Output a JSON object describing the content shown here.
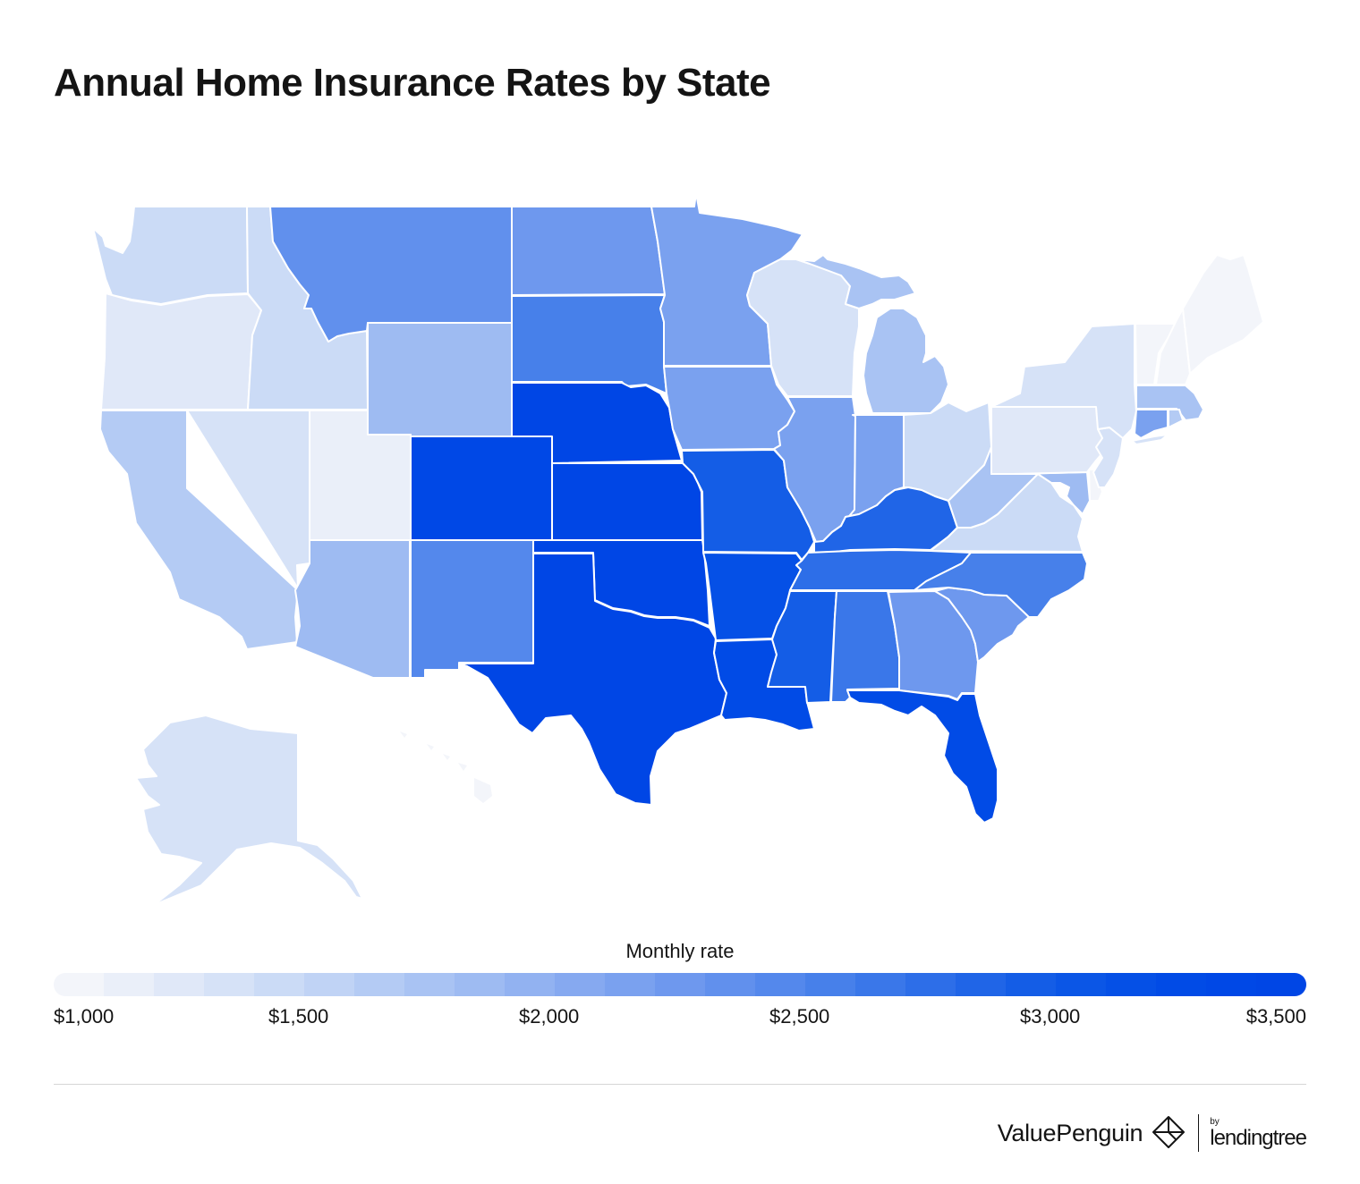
{
  "title": "Annual Home Insurance Rates by State",
  "legend": {
    "title": "Monthly rate",
    "ticks": [
      "$1,000",
      "$1,500",
      "$2,000",
      "$2,500",
      "$3,000",
      "$3,500"
    ],
    "min": 1000,
    "max": 3500,
    "colors": [
      "#f3f5fa",
      "#eaeff9",
      "#e0e8f8",
      "#d6e2f7",
      "#cbdbf6",
      "#c0d3f5",
      "#b4cbf4",
      "#a9c3f3",
      "#9ebbf2",
      "#92b2f1",
      "#86a9f0",
      "#7aa1ef",
      "#6e98ee",
      "#6190ed",
      "#5488ec",
      "#4780ea",
      "#3a77e9",
      "#2d6ee8",
      "#2065e7",
      "#145de6",
      "#0b56e6",
      "#0550e6",
      "#014be6",
      "#0048e6",
      "#0046e5"
    ]
  },
  "chart_data": {
    "type": "choropleth",
    "title": "Annual Home Insurance Rates by State",
    "legend_label": "Monthly rate",
    "scale": {
      "min": 1000,
      "max": 3500,
      "ticks": [
        1000,
        1500,
        2000,
        2500,
        3000,
        3500
      ]
    },
    "colors": {
      "low": "#f3f5fa",
      "high": "#0048e6"
    },
    "states": [
      {
        "state": "WA",
        "value": 1400
      },
      {
        "state": "OR",
        "value": 1250
      },
      {
        "state": "CA",
        "value": 1600
      },
      {
        "state": "NV",
        "value": 1350
      },
      {
        "state": "ID",
        "value": 1400
      },
      {
        "state": "MT",
        "value": 2350
      },
      {
        "state": "WY",
        "value": 1850
      },
      {
        "state": "UT",
        "value": 1150
      },
      {
        "state": "AZ",
        "value": 1850
      },
      {
        "state": "CO",
        "value": 3300
      },
      {
        "state": "NM",
        "value": 2450
      },
      {
        "state": "ND",
        "value": 2250
      },
      {
        "state": "SD",
        "value": 2550
      },
      {
        "state": "NE",
        "value": 3450
      },
      {
        "state": "KS",
        "value": 3400
      },
      {
        "state": "OK",
        "value": 3450
      },
      {
        "state": "TX",
        "value": 3400
      },
      {
        "state": "MN",
        "value": 2150
      },
      {
        "state": "IA",
        "value": 2150
      },
      {
        "state": "MO",
        "value": 2900
      },
      {
        "state": "AR",
        "value": 3150
      },
      {
        "state": "LA",
        "value": 3200
      },
      {
        "state": "WI",
        "value": 1350
      },
      {
        "state": "IL",
        "value": 2100
      },
      {
        "state": "MI",
        "value": 1700
      },
      {
        "state": "IN",
        "value": 2100
      },
      {
        "state": "OH",
        "value": 1400
      },
      {
        "state": "KY",
        "value": 2800
      },
      {
        "state": "TN",
        "value": 2700
      },
      {
        "state": "MS",
        "value": 2900
      },
      {
        "state": "AL",
        "value": 2650
      },
      {
        "state": "GA",
        "value": 2200
      },
      {
        "state": "FL",
        "value": 3250
      },
      {
        "state": "SC",
        "value": 2250
      },
      {
        "state": "NC",
        "value": 2550
      },
      {
        "state": "VA",
        "value": 1450
      },
      {
        "state": "WV",
        "value": 1750
      },
      {
        "state": "MD",
        "value": 1850
      },
      {
        "state": "DE",
        "value": 1050
      },
      {
        "state": "NJ",
        "value": 1350
      },
      {
        "state": "PA",
        "value": 1250
      },
      {
        "state": "NY",
        "value": 1350
      },
      {
        "state": "CT",
        "value": 2100
      },
      {
        "state": "RI",
        "value": 1600
      },
      {
        "state": "MA",
        "value": 1750
      },
      {
        "state": "VT",
        "value": 1050
      },
      {
        "state": "NH",
        "value": 1050
      },
      {
        "state": "ME",
        "value": 1050
      },
      {
        "state": "AK",
        "value": 1350
      },
      {
        "state": "HI",
        "value": 1000
      }
    ]
  },
  "footer": {
    "brand": "ValuePenguin",
    "partner_prefix": "by",
    "partner": "lendingtree"
  }
}
